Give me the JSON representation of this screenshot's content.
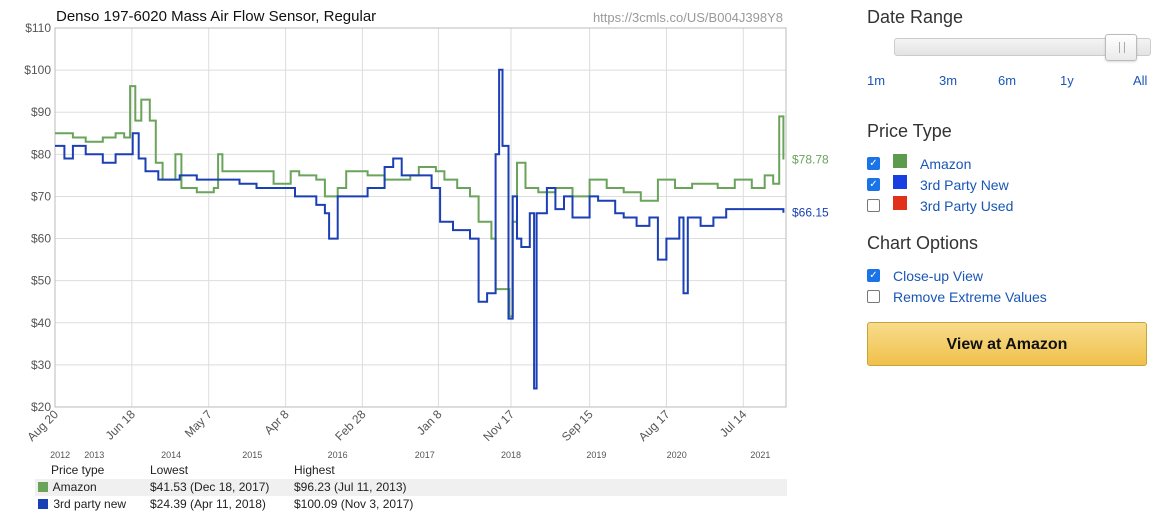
{
  "chart_title": "Denso 197-6020 Mass Air Flow Sensor, Regular",
  "source_url": "https://3cmls.co/US/B004J398Y8",
  "chart_data": {
    "type": "line",
    "title": "Denso 197-6020 Mass Air Flow Sensor, Regular",
    "ylim": [
      20,
      110
    ],
    "y_ticks": [
      "$20",
      "$30",
      "$40",
      "$50",
      "$60",
      "$70",
      "$80",
      "$90",
      "$100",
      "$110"
    ],
    "x_tick_labels": [
      "Aug 20",
      "Jun 18",
      "May 7",
      "Apr 8",
      "Feb 28",
      "Jan 8",
      "Nov 17",
      "Sep 15",
      "Aug 17",
      "Jul 14"
    ],
    "year_labels": [
      "2012",
      "2013",
      "2014",
      "2015",
      "2016",
      "2017",
      "2018",
      "2019",
      "2020",
      "2021"
    ],
    "grid": true,
    "series": [
      {
        "name": "Amazon",
        "color": "#6aa35a",
        "current_label": "$78.78",
        "values": [
          [
            2012.64,
            85
          ],
          [
            2012.85,
            84
          ],
          [
            2013.0,
            83
          ],
          [
            2013.2,
            84
          ],
          [
            2013.35,
            85
          ],
          [
            2013.45,
            84
          ],
          [
            2013.52,
            96.2
          ],
          [
            2013.58,
            88
          ],
          [
            2013.65,
            93
          ],
          [
            2013.75,
            88
          ],
          [
            2013.82,
            78
          ],
          [
            2013.9,
            74
          ],
          [
            2014.05,
            80
          ],
          [
            2014.12,
            72
          ],
          [
            2014.3,
            71
          ],
          [
            2014.5,
            72
          ],
          [
            2014.55,
            80
          ],
          [
            2014.6,
            76
          ],
          [
            2015.0,
            76
          ],
          [
            2015.2,
            73
          ],
          [
            2015.4,
            76
          ],
          [
            2015.5,
            75
          ],
          [
            2015.7,
            74
          ],
          [
            2015.8,
            70
          ],
          [
            2015.95,
            72
          ],
          [
            2016.05,
            76
          ],
          [
            2016.2,
            76
          ],
          [
            2016.3,
            75
          ],
          [
            2016.5,
            74
          ],
          [
            2016.8,
            75
          ],
          [
            2016.9,
            77
          ],
          [
            2017.1,
            76
          ],
          [
            2017.2,
            74
          ],
          [
            2017.35,
            72
          ],
          [
            2017.5,
            70
          ],
          [
            2017.6,
            64
          ],
          [
            2017.75,
            60
          ],
          [
            2017.8,
            48
          ],
          [
            2017.96,
            41.53
          ],
          [
            2018.0,
            64
          ],
          [
            2018.05,
            78
          ],
          [
            2018.15,
            72
          ],
          [
            2018.3,
            71
          ],
          [
            2018.5,
            72
          ],
          [
            2018.7,
            70
          ],
          [
            2018.9,
            74
          ],
          [
            2019.1,
            72
          ],
          [
            2019.3,
            71
          ],
          [
            2019.5,
            69
          ],
          [
            2019.7,
            74
          ],
          [
            2019.9,
            72
          ],
          [
            2020.1,
            73
          ],
          [
            2020.4,
            72
          ],
          [
            2020.6,
            74
          ],
          [
            2020.8,
            72
          ],
          [
            2020.95,
            75
          ],
          [
            2021.05,
            73
          ],
          [
            2021.12,
            89
          ],
          [
            2021.17,
            78.78
          ]
        ]
      },
      {
        "name": "3rd party new",
        "color": "#1b3fb5",
        "current_label": "$66.15",
        "values": [
          [
            2012.64,
            82
          ],
          [
            2012.75,
            79
          ],
          [
            2012.85,
            82
          ],
          [
            2013.0,
            80
          ],
          [
            2013.2,
            78
          ],
          [
            2013.35,
            80
          ],
          [
            2013.55,
            85
          ],
          [
            2013.62,
            79
          ],
          [
            2013.7,
            76
          ],
          [
            2013.85,
            74
          ],
          [
            2014.1,
            75
          ],
          [
            2014.3,
            74
          ],
          [
            2014.5,
            74
          ],
          [
            2014.8,
            73
          ],
          [
            2015.0,
            72
          ],
          [
            2015.2,
            72
          ],
          [
            2015.45,
            70
          ],
          [
            2015.6,
            70
          ],
          [
            2015.7,
            68
          ],
          [
            2015.8,
            66
          ],
          [
            2015.85,
            60
          ],
          [
            2015.95,
            70
          ],
          [
            2016.1,
            70
          ],
          [
            2016.3,
            72
          ],
          [
            2016.5,
            77
          ],
          [
            2016.6,
            79
          ],
          [
            2016.7,
            75
          ],
          [
            2016.9,
            75
          ],
          [
            2017.05,
            72
          ],
          [
            2017.15,
            64
          ],
          [
            2017.3,
            62
          ],
          [
            2017.5,
            60
          ],
          [
            2017.6,
            45
          ],
          [
            2017.7,
            47
          ],
          [
            2017.8,
            80
          ],
          [
            2017.84,
            100.09
          ],
          [
            2017.88,
            82
          ],
          [
            2017.95,
            41
          ],
          [
            2018.0,
            70
          ],
          [
            2018.05,
            60
          ],
          [
            2018.1,
            58
          ],
          [
            2018.2,
            66
          ],
          [
            2018.25,
            24.39
          ],
          [
            2018.28,
            66
          ],
          [
            2018.4,
            72
          ],
          [
            2018.5,
            67
          ],
          [
            2018.6,
            70
          ],
          [
            2018.7,
            65
          ],
          [
            2018.9,
            70
          ],
          [
            2019.0,
            69
          ],
          [
            2019.2,
            66
          ],
          [
            2019.3,
            65
          ],
          [
            2019.45,
            63
          ],
          [
            2019.6,
            65
          ],
          [
            2019.7,
            55
          ],
          [
            2019.8,
            60
          ],
          [
            2019.95,
            65
          ],
          [
            2020.0,
            47
          ],
          [
            2020.05,
            65
          ],
          [
            2020.2,
            63
          ],
          [
            2020.35,
            65
          ],
          [
            2020.5,
            67
          ],
          [
            2020.7,
            67
          ],
          [
            2020.95,
            67
          ],
          [
            2021.17,
            66.15
          ]
        ]
      }
    ]
  },
  "summary": {
    "headers": [
      "Price type",
      "Lowest",
      "Highest"
    ],
    "rows": [
      {
        "type": "Amazon",
        "color": "#6aa35a",
        "lowest": "$41.53 (Dec 18, 2017)",
        "highest": "$96.23 (Jul 11, 2013)"
      },
      {
        "type": "3rd party new",
        "color": "#1b3fb5",
        "lowest": "$24.39 (Apr 11, 2018)",
        "highest": "$100.09 (Nov 3, 2017)"
      }
    ]
  },
  "sidebar": {
    "date_range_title": "Date Range",
    "date_range_options": [
      "1m",
      "3m",
      "6m",
      "1y",
      "All"
    ],
    "slider_value": 1.0,
    "price_type_title": "Price Type",
    "price_types": [
      {
        "label": "Amazon",
        "checked": true,
        "color": "#5c9b4e"
      },
      {
        "label": "3rd Party New",
        "checked": true,
        "color": "#1a3fe0"
      },
      {
        "label": "3rd Party Used",
        "checked": false,
        "color": "#e0321a"
      }
    ],
    "chart_options_title": "Chart Options",
    "chart_options": [
      {
        "label": "Close-up View",
        "checked": true
      },
      {
        "label": "Remove Extreme Values",
        "checked": false
      }
    ],
    "button_label": "View at Amazon"
  }
}
